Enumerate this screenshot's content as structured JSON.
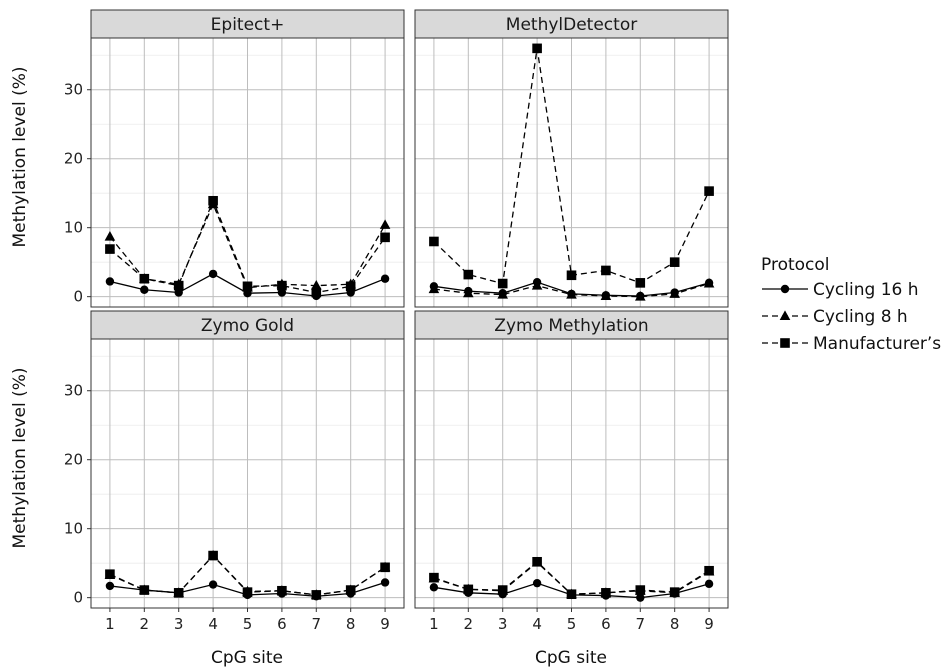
{
  "chart_data": {
    "type": "line",
    "layout": "facet-grid 2x2",
    "xlabel": "CpG site",
    "ylabel": "Methylation level (%)",
    "x": [
      1,
      2,
      3,
      4,
      5,
      6,
      7,
      8,
      9
    ],
    "x_tick_labels": [
      "1",
      "2",
      "3",
      "4",
      "5",
      "6",
      "7",
      "8",
      "9"
    ],
    "ylim": [
      -1.5,
      37.5
    ],
    "y_ticks": [
      0,
      10,
      20,
      30
    ],
    "y_tick_labels": [
      "0",
      "10",
      "20",
      "30"
    ],
    "grid": true,
    "legend": {
      "title": "Protocol",
      "position": "right",
      "entries": [
        {
          "name": "Cycling 16 h",
          "linestyle": "solid",
          "marker": "circle"
        },
        {
          "name": "Cycling 8 h",
          "linestyle": "dashed",
          "marker": "triangle"
        },
        {
          "name": "Manufacturer’s",
          "linestyle": "dashed",
          "marker": "square"
        }
      ]
    },
    "panels": [
      {
        "title": "Epitect+",
        "series": [
          {
            "name": "Cycling 16 h",
            "values": [
              2.2,
              1.0,
              0.6,
              3.3,
              0.5,
              0.6,
              0.1,
              0.6,
              2.6
            ]
          },
          {
            "name": "Cycling 8 h",
            "values": [
              8.7,
              2.6,
              1.8,
              13.4,
              1.3,
              1.8,
              1.6,
              1.8,
              10.4
            ]
          },
          {
            "name": "Manufacturer’s",
            "values": [
              6.9,
              2.6,
              1.6,
              13.9,
              1.5,
              1.6,
              0.6,
              1.5,
              8.6
            ]
          }
        ]
      },
      {
        "title": "MethylDetector",
        "series": [
          {
            "name": "Cycling 16 h",
            "values": [
              1.5,
              0.8,
              0.5,
              2.1,
              0.4,
              0.2,
              0.1,
              0.6,
              2.0
            ]
          },
          {
            "name": "Cycling 8 h",
            "values": [
              1.1,
              0.5,
              0.3,
              1.6,
              0.3,
              0.1,
              0.0,
              0.4,
              1.9
            ]
          },
          {
            "name": "Manufacturer’s",
            "values": [
              8.0,
              3.2,
              1.9,
              36.0,
              3.1,
              3.8,
              2.0,
              5.0,
              15.3
            ]
          }
        ]
      },
      {
        "title": "Zymo Gold",
        "series": [
          {
            "name": "Cycling 16 h",
            "values": [
              1.7,
              1.1,
              0.7,
              1.9,
              0.4,
              0.6,
              0.2,
              0.6,
              2.2
            ]
          },
          {
            "name": "Cycling 8 h",
            "values": [
              3.3,
              1.1,
              0.7,
              6.1,
              0.9,
              1.0,
              0.4,
              1.1,
              4.4
            ]
          },
          {
            "name": "Manufacturer’s",
            "values": [
              3.4,
              1.1,
              0.7,
              6.1,
              0.8,
              1.0,
              0.4,
              1.1,
              4.4
            ]
          }
        ]
      },
      {
        "title": "Zymo Methylation",
        "series": [
          {
            "name": "Cycling 16 h",
            "values": [
              1.5,
              0.7,
              0.5,
              2.1,
              0.4,
              0.3,
              0.0,
              0.6,
              2.0
            ]
          },
          {
            "name": "Cycling 8 h",
            "values": [
              2.8,
              1.2,
              1.0,
              5.1,
              0.5,
              0.7,
              1.0,
              0.7,
              3.8
            ]
          },
          {
            "name": "Manufacturer’s",
            "values": [
              2.9,
              1.2,
              1.1,
              5.2,
              0.5,
              0.7,
              1.1,
              0.8,
              3.9
            ]
          }
        ]
      }
    ]
  }
}
